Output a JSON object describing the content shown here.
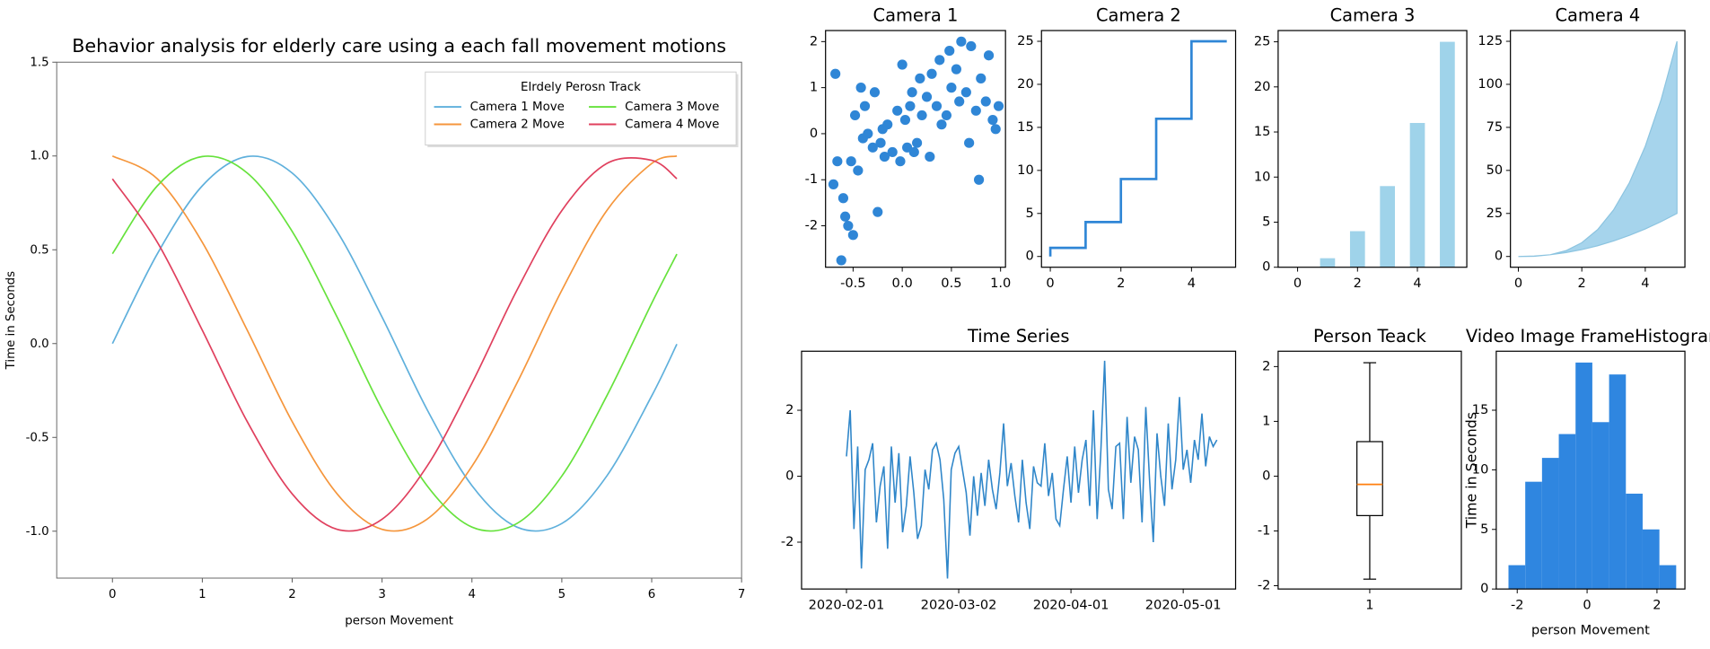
{
  "chart_data": [
    {
      "type": "line",
      "title": "Behavior analysis for elderly care using a each fall movement motions",
      "xlabel": "person Movement",
      "ylabel": "Time in Seconds",
      "legend_title": "Elrdely Perosn Track",
      "legend": "upper right",
      "legend_columns": 2,
      "smooth": true,
      "x": [
        0,
        0.5,
        1,
        1.5,
        2,
        2.5,
        3,
        3.5,
        4,
        4.5,
        5,
        5.5,
        6,
        6.28
      ],
      "series": [
        {
          "name": "Camera 1 Move",
          "color": "#5fb0dc",
          "values": [
            0,
            0.479,
            0.841,
            0.997,
            0.909,
            0.598,
            0.141,
            -0.351,
            -0.757,
            -0.978,
            -0.959,
            -0.706,
            -0.279,
            -0.003
          ]
        },
        {
          "name": "Camera 2 Move",
          "color": "#f5963c",
          "values": [
            1,
            0.878,
            0.54,
            0.071,
            -0.416,
            -0.801,
            -0.99,
            -0.936,
            -0.654,
            -0.211,
            0.284,
            0.709,
            0.96,
            1.0
          ]
        },
        {
          "name": "Camera 3 Move",
          "color": "#66e23c",
          "values": [
            0.479,
            0.841,
            0.997,
            0.909,
            0.598,
            0.141,
            -0.351,
            -0.757,
            -0.978,
            -0.959,
            -0.706,
            -0.279,
            0.215,
            0.477
          ]
        },
        {
          "name": "Camera 4 Move",
          "color": "#e0405e",
          "values": [
            0.878,
            0.54,
            0.071,
            -0.416,
            -0.801,
            -0.99,
            -0.936,
            -0.654,
            -0.211,
            0.284,
            0.709,
            0.96,
            0.977,
            0.879
          ]
        }
      ],
      "xlim": [
        -0.62,
        7
      ],
      "xticks": [
        0,
        1,
        2,
        3,
        4,
        5,
        6,
        7
      ],
      "ylim": [
        -1.25,
        1.5
      ],
      "yticks": [
        {
          "value": -1,
          "label": "-1.0"
        },
        -0.5,
        {
          "value": 0,
          "label": "0.0"
        },
        0.5,
        {
          "value": 1,
          "label": "1.0"
        },
        1.5
      ]
    },
    {
      "type": "scatter",
      "title": "Camera 1",
      "color": "#2f86d6",
      "x": [
        -0.7,
        -0.68,
        -0.66,
        -0.62,
        -0.6,
        -0.58,
        -0.55,
        -0.52,
        -0.5,
        -0.48,
        -0.45,
        -0.42,
        -0.4,
        -0.38,
        -0.35,
        -0.3,
        -0.28,
        -0.25,
        -0.22,
        -0.2,
        -0.18,
        -0.15,
        -0.1,
        -0.05,
        -0.02,
        0,
        0.03,
        0.05,
        0.08,
        0.1,
        0.12,
        0.15,
        0.18,
        0.2,
        0.25,
        0.28,
        0.3,
        0.35,
        0.38,
        0.4,
        0.45,
        0.48,
        0.5,
        0.55,
        0.58,
        0.6,
        0.65,
        0.68,
        0.7,
        0.75,
        0.78,
        0.8,
        0.85,
        0.88,
        0.92,
        0.95,
        0.98
      ],
      "values": [
        -1.1,
        1.3,
        -0.6,
        -2.75,
        -1.4,
        -1.8,
        -2.0,
        -0.6,
        -2.2,
        0.4,
        -0.8,
        1.0,
        -0.1,
        0.6,
        0,
        -0.3,
        0.9,
        -1.7,
        -0.2,
        0.1,
        -0.5,
        0.2,
        -0.4,
        0.5,
        -0.6,
        1.5,
        0.3,
        -0.3,
        0.6,
        0.9,
        -0.4,
        -0.2,
        1.2,
        0.4,
        0.8,
        -0.5,
        1.3,
        0.6,
        1.6,
        0.2,
        0.4,
        1.8,
        1.0,
        1.4,
        0.7,
        2.0,
        0.9,
        -0.2,
        1.9,
        0.5,
        -1.0,
        1.2,
        0.7,
        1.7,
        0.3,
        0.1,
        0.6
      ],
      "xlim": [
        -0.78,
        1.05
      ],
      "xticks": [
        -0.5,
        {
          "value": 0,
          "label": "0.0"
        },
        0.5,
        {
          "value": 1,
          "label": "1.0"
        }
      ],
      "ylim": [
        -2.9,
        2.24
      ],
      "yticks": [
        -2,
        -1,
        0,
        1,
        2
      ]
    },
    {
      "type": "step",
      "title": "Camera 2",
      "step": "pre",
      "color": "#2f86d6",
      "x": [
        0,
        1,
        2,
        3,
        4,
        5
      ],
      "values": [
        0,
        1,
        4,
        9,
        16,
        25
      ],
      "xlim": [
        -0.25,
        5.25
      ],
      "xticks": [
        0,
        2,
        4
      ],
      "ylim": [
        -1.25,
        26.25
      ],
      "yticks": [
        0,
        5,
        10,
        15,
        20,
        25
      ]
    },
    {
      "type": "bar",
      "title": "Camera 3",
      "color": "#9fd3ea",
      "x": [
        0,
        1,
        2,
        3,
        4,
        5
      ],
      "values": [
        0,
        1,
        4,
        9,
        16,
        25
      ],
      "xlim": [
        -0.65,
        5.65
      ],
      "xticks": [
        0,
        2,
        4
      ],
      "ylim": [
        0,
        26.25
      ],
      "yticks": [
        0,
        5,
        10,
        15,
        20,
        25
      ]
    },
    {
      "type": "area",
      "title": "Camera 4",
      "color": "#a6d4ec",
      "x": [
        0,
        0.5,
        1,
        1.5,
        2,
        2.5,
        3,
        3.5,
        4,
        4.5,
        5
      ],
      "series": [
        {
          "values": [
            0,
            0.25,
            1,
            2.25,
            4,
            6.25,
            9,
            12.25,
            16,
            20.25,
            25
          ]
        },
        {
          "values": [
            0,
            0.125,
            1,
            3.375,
            8,
            15.625,
            27,
            42.875,
            64,
            91.125,
            125
          ]
        }
      ],
      "xlim": [
        -0.25,
        5.25
      ],
      "xticks": [
        0,
        2,
        4
      ],
      "ylim": [
        -6.25,
        131.25
      ],
      "yticks": [
        0,
        25,
        50,
        75,
        100,
        125
      ]
    },
    {
      "type": "line",
      "title": "Time Series",
      "x": [
        "2020-02-01",
        "2020-02-02",
        "2020-02-03",
        "2020-02-04",
        "2020-02-05",
        "2020-02-06",
        "2020-02-07",
        "2020-02-08",
        "2020-02-09",
        "2020-02-10",
        "2020-02-11",
        "2020-02-12",
        "2020-02-13",
        "2020-02-14",
        "2020-02-15",
        "2020-02-16",
        "2020-02-17",
        "2020-02-18",
        "2020-02-19",
        "2020-02-20",
        "2020-02-21",
        "2020-02-22",
        "2020-02-23",
        "2020-02-24",
        "2020-02-25",
        "2020-02-26",
        "2020-02-27",
        "2020-02-28",
        "2020-02-29",
        "2020-03-01",
        "2020-03-02",
        "2020-03-03",
        "2020-03-04",
        "2020-03-05",
        "2020-03-06",
        "2020-03-07",
        "2020-03-08",
        "2020-03-09",
        "2020-03-10",
        "2020-03-11",
        "2020-03-12",
        "2020-03-13",
        "2020-03-14",
        "2020-03-15",
        "2020-03-16",
        "2020-03-17",
        "2020-03-18",
        "2020-03-19",
        "2020-03-20",
        "2020-03-21",
        "2020-03-22",
        "2020-03-23",
        "2020-03-24",
        "2020-03-25",
        "2020-03-26",
        "2020-03-27",
        "2020-03-28",
        "2020-03-29",
        "2020-03-30",
        "2020-03-31",
        "2020-04-01",
        "2020-04-02",
        "2020-04-03",
        "2020-04-04",
        "2020-04-05",
        "2020-04-06",
        "2020-04-07",
        "2020-04-08",
        "2020-04-09",
        "2020-04-10",
        "2020-04-11",
        "2020-04-12",
        "2020-04-13",
        "2020-04-14",
        "2020-04-15",
        "2020-04-16",
        "2020-04-17",
        "2020-04-18",
        "2020-04-19",
        "2020-04-20",
        "2020-04-21",
        "2020-04-22",
        "2020-04-23",
        "2020-04-24",
        "2020-04-25",
        "2020-04-26",
        "2020-04-27",
        "2020-04-28",
        "2020-04-29",
        "2020-04-30",
        "2020-05-01",
        "2020-05-02",
        "2020-05-03",
        "2020-05-04",
        "2020-05-05",
        "2020-05-06",
        "2020-05-07",
        "2020-05-08",
        "2020-05-09",
        "2020-05-10"
      ],
      "series": [
        {
          "color": "#2f86c9",
          "values": [
            0.6,
            2.0,
            -1.6,
            0.9,
            -2.8,
            0.2,
            0.5,
            1.0,
            -1.4,
            -0.3,
            0.3,
            -2.2,
            0.9,
            -0.8,
            0.7,
            -1.7,
            -0.9,
            0.6,
            -0.5,
            -1.9,
            -1.5,
            0.2,
            -0.4,
            0.8,
            1.0,
            0.5,
            -0.7,
            -3.1,
            0.2,
            0.7,
            0.9,
            0.2,
            -0.5,
            -1.8,
            0,
            -1.2,
            0.1,
            -0.9,
            0.5,
            -0.4,
            -1.0,
            0.1,
            1.6,
            -0.3,
            0.4,
            -0.6,
            -1.4,
            0.5,
            -0.8,
            -1.6,
            0.3,
            -0.2,
            -0.3,
            1.0,
            -0.6,
            0.1,
            -1.3,
            -1.5,
            -0.4,
            0.6,
            -0.8,
            0.9,
            -0.5,
            0.5,
            1.1,
            -0.9,
            2.0,
            -1.3,
            0.8,
            3.5,
            -0.4,
            -1.0,
            0.9,
            1.0,
            -1.3,
            1.8,
            -0.2,
            1.2,
            0.8,
            -1.4,
            2.1,
            -0.1,
            -2.0,
            1.3,
            0,
            -0.9,
            1.6,
            -0.4,
            0.5,
            2.4,
            0.2,
            0.8,
            -0.2,
            1.1,
            0.5,
            1.9,
            0.3,
            1.2,
            0.9,
            1.1
          ]
        }
      ],
      "xlim": [
        "2020-01-20",
        "2020-05-15"
      ],
      "xticks": [
        "2020-02-01",
        "2020-03-02",
        "2020-04-01",
        "2020-05-01"
      ],
      "ylim": [
        -3.42,
        3.79
      ],
      "yticks": [
        -2,
        0,
        2
      ]
    },
    {
      "type": "box",
      "title": "Person Teack",
      "x": [
        1
      ],
      "boxes": [
        {
          "whislo": -1.88,
          "q1": -0.72,
          "median": -0.15,
          "q3": 0.63,
          "whishi": 2.07
        }
      ],
      "xlim": [
        0.5,
        1.5
      ],
      "xticks": [
        1
      ],
      "ylim": [
        -2.06,
        2.28
      ],
      "yticks": [
        -2,
        -1,
        0,
        1,
        2
      ]
    },
    {
      "type": "histogram",
      "title": "Video Image FrameHistograr",
      "xlabel": "person Movement",
      "ylabel": "Time in Seconds",
      "color": "#2f86e0",
      "bins": [
        -2.25,
        -1.77,
        -1.29,
        -0.81,
        -0.33,
        0.15,
        0.63,
        1.11,
        1.59,
        2.07,
        2.55
      ],
      "counts": [
        2,
        9,
        11,
        13,
        19,
        14,
        18,
        8,
        5,
        2
      ],
      "xlim": [
        -2.6,
        2.8
      ],
      "xticks": [
        -2,
        0,
        2
      ],
      "ylim": [
        0,
        19.95
      ],
      "yticks": [
        0,
        5,
        10,
        15
      ]
    }
  ]
}
